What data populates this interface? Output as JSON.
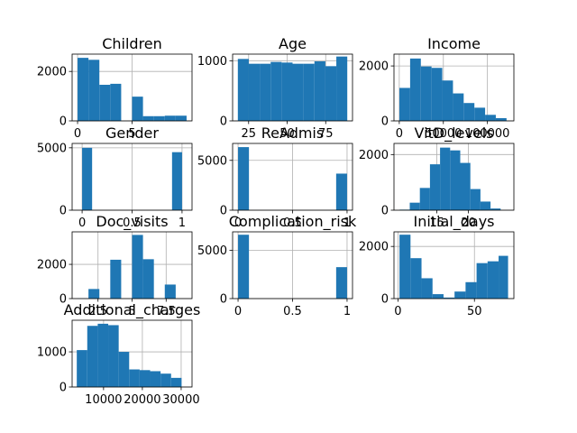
{
  "colors": {
    "bar": "#1f77b4",
    "grid": "#b0b0b0",
    "axis": "#000000",
    "background": "#ffffff"
  },
  "chart_data": [
    {
      "type": "bar",
      "title": "Children",
      "xlim": [
        -0.5,
        10.5
      ],
      "ylim": [
        0,
        2700
      ],
      "xticks": [
        0,
        5
      ],
      "yticks": [
        0,
        2000
      ],
      "bins": [
        [
          0,
          1,
          2550
        ],
        [
          1,
          2,
          2470
        ],
        [
          2,
          3,
          1460
        ],
        [
          3,
          4,
          1500
        ],
        [
          4,
          5,
          0
        ],
        [
          5,
          6,
          980
        ],
        [
          6,
          7,
          190
        ],
        [
          7,
          8,
          190
        ],
        [
          8,
          9,
          210
        ],
        [
          9,
          10,
          210
        ]
      ],
      "grid": true
    },
    {
      "type": "bar",
      "title": "Age",
      "xlim": [
        14.6,
        92.4
      ],
      "ylim": [
        0,
        1110
      ],
      "xticks": [
        25,
        50,
        75
      ],
      "yticks": [
        0,
        1000
      ],
      "bins": [
        [
          18,
          25.1,
          1030
        ],
        [
          25.1,
          32.2,
          950
        ],
        [
          32.2,
          39.3,
          950
        ],
        [
          39.3,
          46.4,
          980
        ],
        [
          46.4,
          53.5,
          970
        ],
        [
          53.5,
          60.6,
          950
        ],
        [
          60.6,
          67.7,
          950
        ],
        [
          67.7,
          74.8,
          990
        ],
        [
          74.8,
          81.9,
          910
        ],
        [
          81.9,
          89,
          1070
        ]
      ],
      "grid": true
    },
    {
      "type": "bar",
      "title": "Income",
      "xlim": [
        -6000,
        130000
      ],
      "ylim": [
        0,
        2430
      ],
      "xticks": [
        0,
        50000,
        100000
      ],
      "yticks": [
        0,
        2000
      ],
      "bins": [
        [
          150,
          12300,
          1200
        ],
        [
          12300,
          24450,
          2270
        ],
        [
          24450,
          36600,
          1980
        ],
        [
          36600,
          48750,
          1930
        ],
        [
          48750,
          60900,
          1470
        ],
        [
          60900,
          73050,
          1000
        ],
        [
          73050,
          85200,
          650
        ],
        [
          85200,
          97350,
          480
        ],
        [
          97350,
          109500,
          220
        ],
        [
          109500,
          121650,
          100
        ]
      ],
      "grid": true
    },
    {
      "type": "bar",
      "title": "Gender",
      "xlim": [
        -0.1,
        1.1
      ],
      "ylim": [
        0,
        5350
      ],
      "xticks": [
        0.0,
        0.5,
        1.0
      ],
      "yticks": [
        0,
        5000
      ],
      "bins": [
        [
          0,
          0.1,
          5000
        ],
        [
          0.1,
          0.9,
          0
        ],
        [
          0.9,
          1.0,
          4650
        ]
      ],
      "grid": true
    },
    {
      "type": "bar",
      "title": "ReAdmis",
      "xlim": [
        -0.05,
        1.05
      ],
      "ylim": [
        0,
        6700
      ],
      "xticks": [
        0.0,
        0.5,
        1.0
      ],
      "yticks": [
        0,
        5000
      ],
      "bins": [
        [
          0,
          0.1,
          6330
        ],
        [
          0.1,
          0.9,
          0
        ],
        [
          0.9,
          1.0,
          3670
        ]
      ],
      "grid": true
    },
    {
      "type": "bar",
      "title": "VitD_levels",
      "xlim": [
        8.2,
        27.2
      ],
      "ylim": [
        0,
        2400
      ],
      "xticks": [
        15,
        20
      ],
      "yticks": [
        0,
        2000
      ],
      "bins": [
        [
          9.1,
          10.7,
          20
        ],
        [
          10.7,
          12.3,
          270
        ],
        [
          12.3,
          13.9,
          800
        ],
        [
          13.9,
          15.5,
          1650
        ],
        [
          15.5,
          17.1,
          2250
        ],
        [
          17.1,
          18.7,
          2150
        ],
        [
          18.7,
          20.3,
          1700
        ],
        [
          20.3,
          21.9,
          760
        ],
        [
          21.9,
          23.5,
          310
        ],
        [
          23.5,
          25.1,
          60
        ]
      ],
      "grid": true
    },
    {
      "type": "bar",
      "title": "Doc_visits",
      "xlim": [
        0.6,
        9.4
      ],
      "ylim": [
        0,
        3900
      ],
      "xticks": [
        2.5,
        5.0,
        7.5
      ],
      "yticks": [
        0,
        2000
      ],
      "bins": [
        [
          1,
          1.8,
          10
        ],
        [
          1.8,
          2.6,
          560
        ],
        [
          2.6,
          3.4,
          0
        ],
        [
          3.4,
          4.2,
          2270
        ],
        [
          4.2,
          5.0,
          0
        ],
        [
          5.0,
          5.8,
          3720
        ],
        [
          5.8,
          6.6,
          2300
        ],
        [
          6.6,
          7.4,
          0
        ],
        [
          7.4,
          8.2,
          820
        ],
        [
          8.2,
          9.0,
          0
        ]
      ],
      "grid": true
    },
    {
      "type": "bar",
      "title": "Complication_risk",
      "xlim": [
        -0.05,
        1.05
      ],
      "ylim": [
        0,
        6900
      ],
      "xticks": [
        0.0,
        0.5,
        1.0
      ],
      "yticks": [
        0,
        5000
      ],
      "bins": [
        [
          0,
          0.1,
          6600
        ],
        [
          0.1,
          0.9,
          0
        ],
        [
          0.9,
          1.0,
          3250
        ]
      ],
      "grid": true
    },
    {
      "type": "bar",
      "title": "Initial_days",
      "xlim": [
        -2.6,
        75.8
      ],
      "ylim": [
        0,
        2560
      ],
      "xticks": [
        0,
        50
      ],
      "yticks": [
        0,
        2000
      ],
      "bins": [
        [
          1,
          8.2,
          2450
        ],
        [
          8.2,
          15.4,
          1550
        ],
        [
          15.4,
          22.6,
          780
        ],
        [
          22.6,
          29.8,
          170
        ],
        [
          29.8,
          37.0,
          40
        ],
        [
          37.0,
          44.2,
          270
        ],
        [
          44.2,
          51.4,
          630
        ],
        [
          51.4,
          58.6,
          1360
        ],
        [
          58.6,
          65.8,
          1430
        ],
        [
          65.8,
          72.0,
          1640
        ]
      ],
      "grid": true
    },
    {
      "type": "bar",
      "title": "Additional_charges",
      "xlim": [
        1900,
        32800
      ],
      "ylim": [
        0,
        1900
      ],
      "xticks": [
        10000,
        20000,
        30000
      ],
      "yticks": [
        0,
        1000
      ],
      "bins": [
        [
          3100,
          5800,
          1050
        ],
        [
          5800,
          8500,
          1740
        ],
        [
          8500,
          11200,
          1800
        ],
        [
          11200,
          13900,
          1760
        ],
        [
          13900,
          16600,
          1000
        ],
        [
          16600,
          19300,
          500
        ],
        [
          19300,
          22000,
          480
        ],
        [
          22000,
          24700,
          450
        ],
        [
          24700,
          27400,
          380
        ],
        [
          27400,
          30100,
          260
        ]
      ],
      "grid": true
    }
  ]
}
